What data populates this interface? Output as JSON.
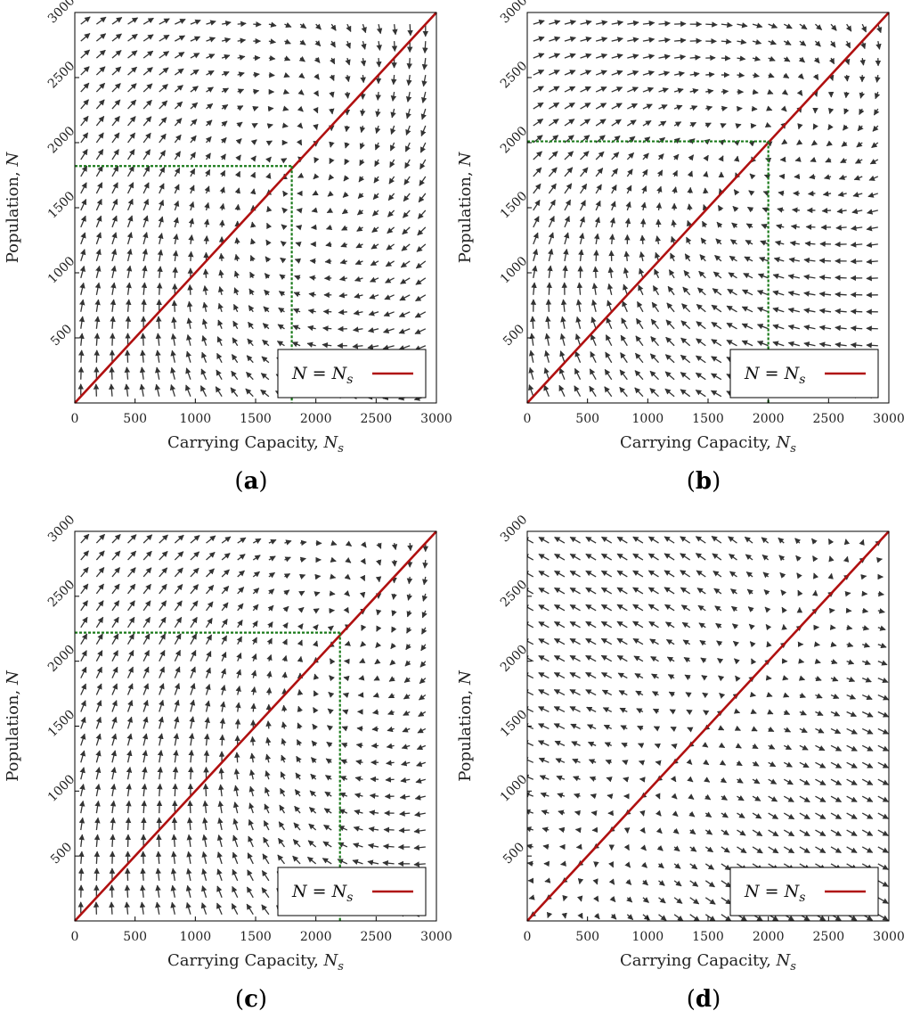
{
  "colors": {
    "diagonal": "#b01010",
    "equilibrium": "#1a7a1a",
    "arrows": "#333333",
    "frame": "#000000"
  },
  "chart_data": [
    {
      "id": "a",
      "type": "quiver",
      "panel_label": "(a)",
      "xlabel": "Carrying Capacity, N_s",
      "ylabel": "Population, N",
      "xlim": [
        0,
        3000
      ],
      "ylim": [
        0,
        3000
      ],
      "xticks": [
        "0",
        "500",
        "1000",
        "1500",
        "2000",
        "2500",
        "3000"
      ],
      "yticks": [
        "500",
        "1000",
        "1500",
        "2000",
        "2500",
        "3000"
      ],
      "legend": {
        "label": "N = N_s",
        "position": "bottom-right"
      },
      "equilibrium": [
        1800,
        1820
      ],
      "field": "spiral"
    },
    {
      "id": "b",
      "type": "quiver",
      "panel_label": "(b)",
      "xlabel": "Carrying Capacity, N_s",
      "ylabel": "Population, N",
      "xlim": [
        0,
        3000
      ],
      "ylim": [
        0,
        3000
      ],
      "xticks": [
        "0",
        "500",
        "1000",
        "1500",
        "2000",
        "2500",
        "3000"
      ],
      "yticks": [
        "500",
        "1000",
        "1500",
        "2000",
        "2500",
        "3000"
      ],
      "legend": {
        "label": "N = N_s",
        "position": "bottom-right"
      },
      "equilibrium": [
        2000,
        2010
      ],
      "field": "swirl"
    },
    {
      "id": "c",
      "type": "quiver",
      "panel_label": "(c)",
      "xlabel": "Carrying Capacity, N_s",
      "ylabel": "Population, N",
      "xlim": [
        0,
        3000
      ],
      "ylim": [
        0,
        3000
      ],
      "xticks": [
        "0",
        "500",
        "1000",
        "1500",
        "2000",
        "2500",
        "3000"
      ],
      "yticks": [
        "500",
        "1000",
        "1500",
        "2000",
        "2500",
        "3000"
      ],
      "legend": {
        "label": "N = N_s",
        "position": "bottom-right"
      },
      "equilibrium": [
        2200,
        2220
      ],
      "field": "spiral"
    },
    {
      "id": "d",
      "type": "quiver",
      "panel_label": "(d)",
      "xlabel": "Carrying Capacity, N_s",
      "ylabel": "Population, N",
      "xlim": [
        0,
        3000
      ],
      "ylim": [
        0,
        3000
      ],
      "xticks": [
        "0",
        "500",
        "1000",
        "1500",
        "2000",
        "2500",
        "3000"
      ],
      "yticks": [
        "500",
        "1000",
        "1500",
        "2000",
        "2500",
        "3000"
      ],
      "legend": {
        "label": "N = N_s",
        "position": "bottom-right"
      },
      "equilibrium": null,
      "field": "unstable"
    }
  ]
}
